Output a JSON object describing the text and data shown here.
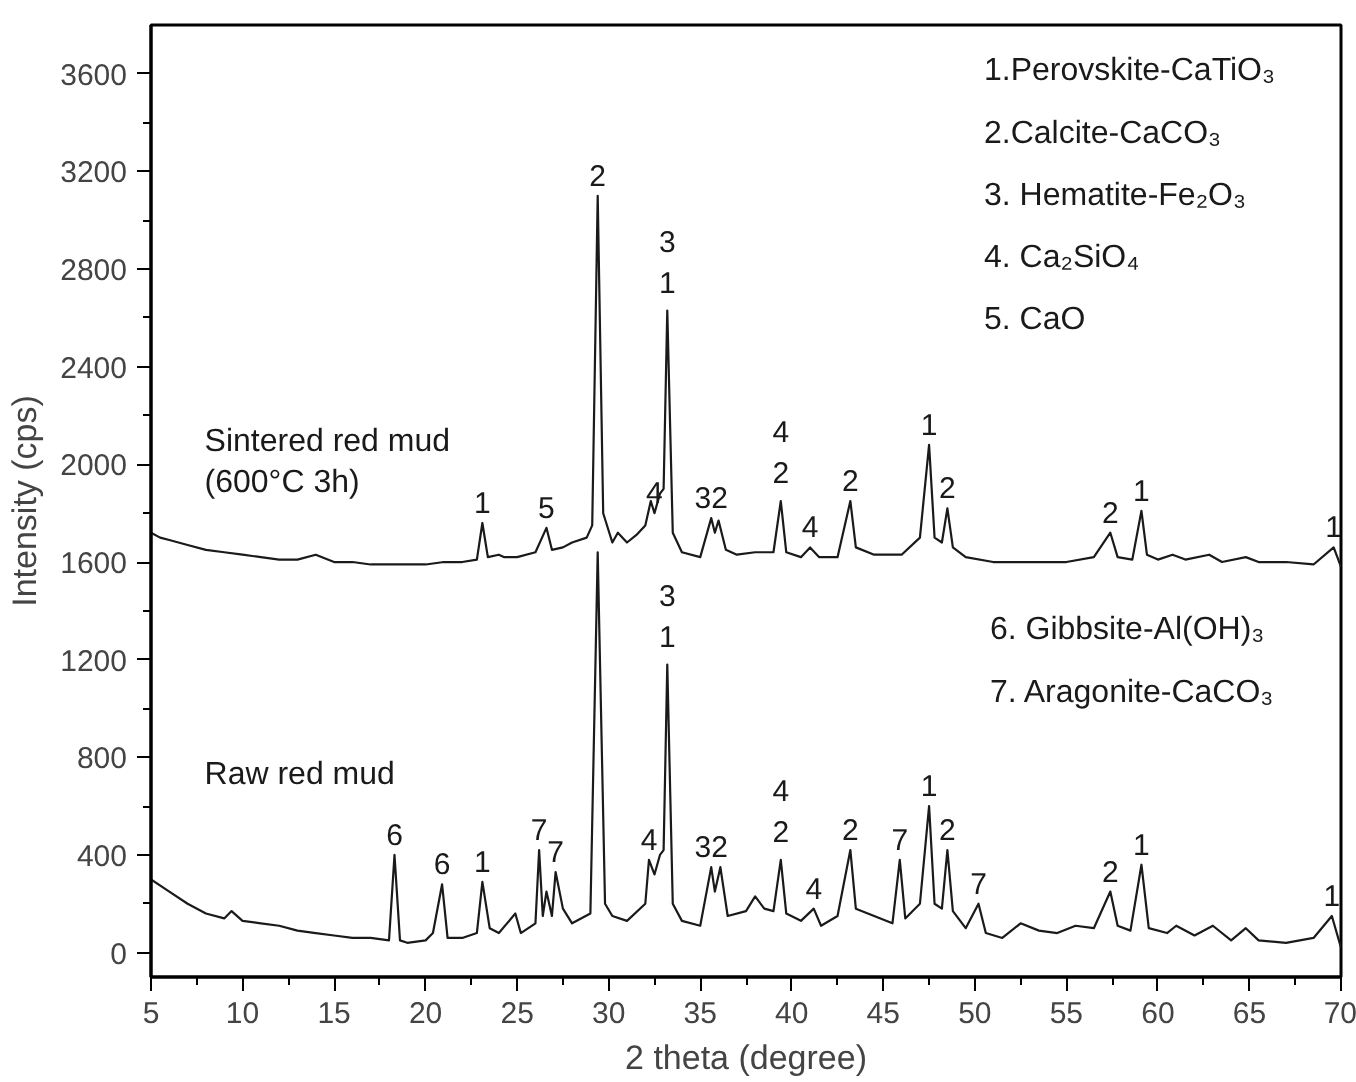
{
  "chart_data": {
    "type": "line",
    "xlabel": "2 theta (degree)",
    "ylabel": "Intensity (cps)",
    "xlim": [
      5,
      70
    ],
    "ylim": [
      -100,
      3800
    ],
    "xticks": [
      5,
      10,
      15,
      20,
      25,
      30,
      35,
      40,
      45,
      50,
      55,
      60,
      65,
      70
    ],
    "yticks": [
      0,
      400,
      800,
      1200,
      1600,
      2000,
      2400,
      2800,
      3200,
      3600
    ],
    "grid": false,
    "marker": "none",
    "line_style": "solid",
    "series": [
      {
        "name": "Sintered red mud\n(600°C 3h)",
        "color": "#1a1a1a",
        "x": [
          5,
          5.5,
          6,
          7,
          8,
          9,
          10,
          11,
          12,
          13,
          14,
          15,
          16,
          17,
          18,
          19,
          20,
          21,
          22,
          22.8,
          23.1,
          23.4,
          24,
          24.3,
          25,
          26,
          26.6,
          26.9,
          27.5,
          28,
          28.8,
          29.1,
          29.4,
          29.7,
          30.2,
          30.5,
          31,
          31.5,
          32,
          32.3,
          32.5,
          32.8,
          33.0,
          33.2,
          33.5,
          34,
          35,
          35.6,
          35.8,
          36.0,
          36.4,
          37,
          38,
          39,
          39.4,
          39.7,
          40.5,
          41.0,
          41.5,
          42.5,
          43.2,
          43.5,
          44.5,
          46,
          47,
          47.5,
          47.8,
          48.2,
          48.5,
          48.8,
          49.5,
          51,
          53,
          55,
          56.5,
          57.4,
          57.8,
          58.6,
          59.1,
          59.4,
          60,
          60.8,
          61.5,
          62.8,
          63.5,
          64.8,
          65.5,
          67,
          68.5,
          69.6,
          70
        ],
        "values": [
          1720,
          1700,
          1690,
          1670,
          1650,
          1640,
          1630,
          1620,
          1610,
          1610,
          1630,
          1600,
          1600,
          1590,
          1590,
          1590,
          1590,
          1600,
          1600,
          1610,
          1760,
          1620,
          1630,
          1620,
          1620,
          1640,
          1740,
          1650,
          1660,
          1680,
          1700,
          1750,
          3100,
          1800,
          1680,
          1720,
          1680,
          1710,
          1750,
          1850,
          1800,
          1880,
          1900,
          2630,
          1720,
          1640,
          1620,
          1780,
          1720,
          1770,
          1650,
          1630,
          1640,
          1640,
          1850,
          1640,
          1620,
          1660,
          1620,
          1620,
          1850,
          1660,
          1630,
          1630,
          1700,
          2080,
          1700,
          1680,
          1820,
          1660,
          1620,
          1600,
          1600,
          1600,
          1620,
          1720,
          1620,
          1610,
          1810,
          1630,
          1610,
          1630,
          1610,
          1630,
          1600,
          1620,
          1600,
          1600,
          1590,
          1660,
          1580
        ]
      },
      {
        "name": "Raw red mud",
        "color": "#1a1a1a",
        "x": [
          5,
          6,
          7,
          8,
          9,
          9.4,
          10,
          11,
          12,
          13,
          14,
          15,
          16,
          17,
          18,
          18.3,
          18.6,
          19,
          20,
          20.4,
          20.9,
          21.2,
          22,
          22.8,
          23.1,
          23.5,
          24,
          24.9,
          25.2,
          26,
          26.2,
          26.4,
          26.6,
          26.9,
          27.1,
          27.5,
          28,
          29,
          29.4,
          29.8,
          30.2,
          31,
          32,
          32.2,
          32.5,
          32.8,
          33.0,
          33.2,
          33.5,
          34,
          35,
          35.6,
          35.8,
          36.1,
          36.5,
          37.5,
          38,
          38.5,
          39,
          39.4,
          39.7,
          40.5,
          41.2,
          41.6,
          42.5,
          43.2,
          43.5,
          44.5,
          45.5,
          45.9,
          46.2,
          47,
          47.5,
          47.8,
          48.2,
          48.5,
          48.8,
          49.5,
          50.2,
          50.6,
          51.5,
          52.5,
          53.5,
          54.5,
          55.5,
          56.5,
          57.4,
          57.8,
          58.5,
          59.1,
          59.5,
          60.5,
          61,
          62,
          63,
          64,
          64.8,
          65.5,
          67,
          68.5,
          69.5,
          70
        ],
        "values": [
          300,
          250,
          200,
          160,
          140,
          170,
          130,
          120,
          110,
          90,
          80,
          70,
          60,
          60,
          50,
          400,
          50,
          40,
          50,
          80,
          280,
          60,
          60,
          80,
          290,
          100,
          80,
          160,
          80,
          120,
          420,
          150,
          250,
          150,
          330,
          180,
          120,
          160,
          1640,
          200,
          150,
          130,
          200,
          380,
          320,
          400,
          420,
          1180,
          200,
          130,
          110,
          350,
          250,
          350,
          150,
          170,
          230,
          180,
          170,
          380,
          160,
          130,
          180,
          110,
          150,
          420,
          180,
          150,
          120,
          380,
          140,
          200,
          600,
          200,
          180,
          420,
          170,
          100,
          200,
          80,
          60,
          120,
          90,
          80,
          110,
          100,
          250,
          110,
          90,
          360,
          100,
          80,
          110,
          70,
          110,
          50,
          100,
          50,
          40,
          60,
          150,
          20
        ]
      }
    ],
    "annotations": [
      "1.Perovskite-CaTiO₃",
      "2.Calcite-CaCO₃",
      "3. Hematite-Fe₂O₃",
      "4. Ca₂SiO₄",
      "5. CaO",
      "6. Gibbsite-Al(OH)₃",
      "7. Aragonite-CaCO₃",
      {
        "text": "1",
        "x": 23.1,
        "y": 1760
      },
      {
        "text": "5",
        "x": 26.6,
        "y": 1740
      },
      {
        "text": "2",
        "x": 29.4,
        "y": 3100
      },
      {
        "text": "3\n1",
        "x": 33.2,
        "y": 2630
      },
      {
        "text": "4",
        "x": 32.5,
        "y": 1800
      },
      {
        "text": "32",
        "x": 35.6,
        "y": 1780
      },
      {
        "text": "4\n2",
        "x": 39.4,
        "y": 1850
      },
      {
        "text": "4",
        "x": 41.0,
        "y": 1660
      },
      {
        "text": "2",
        "x": 43.2,
        "y": 1850
      },
      {
        "text": "1",
        "x": 47.5,
        "y": 2080
      },
      {
        "text": "2",
        "x": 48.5,
        "y": 1820
      },
      {
        "text": "2",
        "x": 57.4,
        "y": 1720
      },
      {
        "text": "1",
        "x": 59.1,
        "y": 1810
      },
      {
        "text": "1",
        "x": 69.6,
        "y": 1660
      },
      {
        "text": "3\n1",
        "x": 33.2,
        "y": 1180
      },
      {
        "text": "6",
        "x": 18.3,
        "y": 400
      },
      {
        "text": "6",
        "x": 20.9,
        "y": 280
      },
      {
        "text": "1",
        "x": 23.1,
        "y": 290
      },
      {
        "text": "7",
        "x": 26.2,
        "y": 420
      },
      {
        "text": "7",
        "x": 27.1,
        "y": 330
      },
      {
        "text": "4",
        "x": 32.2,
        "y": 380
      },
      {
        "text": "32",
        "x": 35.6,
        "y": 350
      },
      {
        "text": "4\n2",
        "x": 39.4,
        "y": 380
      },
      {
        "text": "4",
        "x": 41.2,
        "y": 180
      },
      {
        "text": "2",
        "x": 43.2,
        "y": 420
      },
      {
        "text": "7",
        "x": 45.9,
        "y": 380
      },
      {
        "text": "1",
        "x": 47.5,
        "y": 600
      },
      {
        "text": "2",
        "x": 48.5,
        "y": 420
      },
      {
        "text": "7",
        "x": 50.2,
        "y": 200
      },
      {
        "text": "2",
        "x": 57.4,
        "y": 250
      },
      {
        "text": "1",
        "x": 59.1,
        "y": 360
      },
      {
        "text": "1",
        "x": 69.5,
        "y": 150
      }
    ]
  }
}
